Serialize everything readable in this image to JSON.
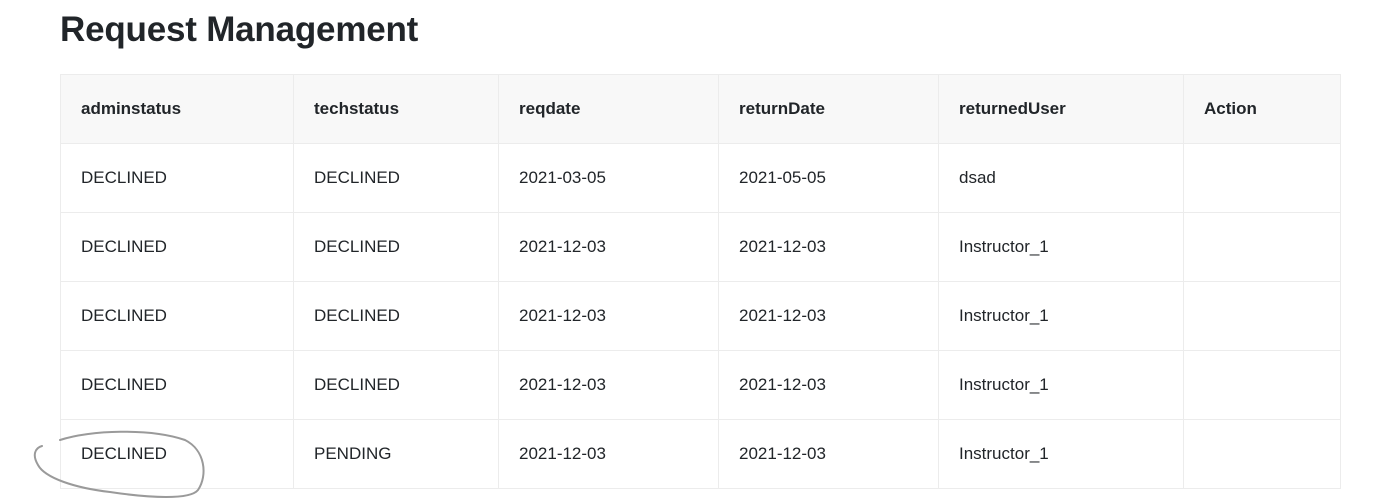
{
  "page": {
    "title": "Request Management"
  },
  "table": {
    "headers": [
      "adminstatus",
      "techstatus",
      "reqdate",
      "returnDate",
      "returnedUser",
      "Action"
    ],
    "rows": [
      [
        "DECLINED",
        "DECLINED",
        "2021-03-05",
        "2021-05-05",
        "dsad",
        ""
      ],
      [
        "DECLINED",
        "DECLINED",
        "2021-12-03",
        "2021-12-03",
        "Instructor_1",
        ""
      ],
      [
        "DECLINED",
        "DECLINED",
        "2021-12-03",
        "2021-12-03",
        "Instructor_1",
        ""
      ],
      [
        "DECLINED",
        "DECLINED",
        "2021-12-03",
        "2021-12-03",
        "Instructor_1",
        ""
      ],
      [
        "DECLINED",
        "PENDING",
        "2021-12-03",
        "2021-12-03",
        "Instructor_1",
        ""
      ]
    ]
  },
  "annotation": {
    "stroke_color": "#9a9a9a"
  }
}
